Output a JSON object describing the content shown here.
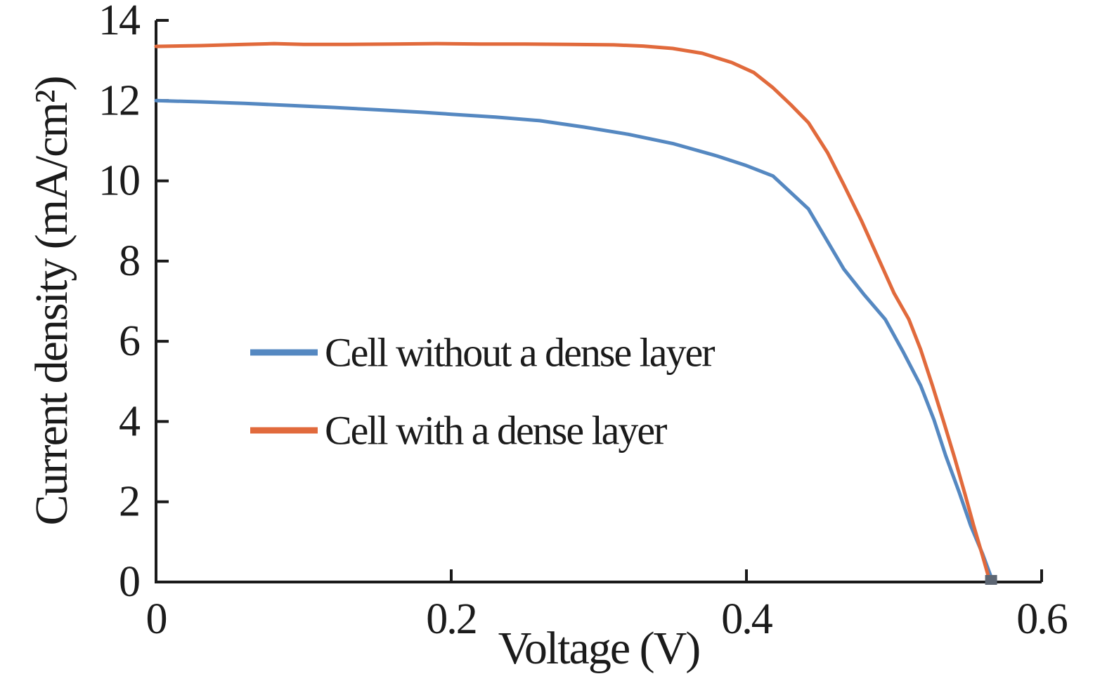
{
  "figure": {
    "background": "#ffffff",
    "axis_color": "#1a1a1a",
    "text_color": "#1b1b1b",
    "endpoint_overlap_color": "#5d6673"
  },
  "chart_data": {
    "type": "line",
    "title": "",
    "xlabel": "Voltage (V)",
    "ylabel": "Current density (mA/cm²)",
    "xlim": [
      0,
      0.6
    ],
    "ylim": [
      0,
      14
    ],
    "xticks": [
      0,
      0.2,
      0.4,
      0.6
    ],
    "xtick_labels": [
      "0",
      "0.2",
      "0.4",
      "0.6"
    ],
    "yticks": [
      0,
      2,
      4,
      6,
      8,
      10,
      12,
      14
    ],
    "ytick_labels": [
      "0",
      "2",
      "4",
      "6",
      "8",
      "10",
      "12",
      "14"
    ],
    "grid": false,
    "legend_position": "inside-middle-left",
    "series": [
      {
        "name": "Cell without a dense layer",
        "color": "#5588C1",
        "points": [
          [
            0.0,
            12.0
          ],
          [
            0.03,
            11.97
          ],
          [
            0.06,
            11.93
          ],
          [
            0.09,
            11.88
          ],
          [
            0.12,
            11.83
          ],
          [
            0.15,
            11.77
          ],
          [
            0.18,
            11.71
          ],
          [
            0.2,
            11.66
          ],
          [
            0.23,
            11.59
          ],
          [
            0.26,
            11.5
          ],
          [
            0.29,
            11.34
          ],
          [
            0.32,
            11.16
          ],
          [
            0.35,
            10.93
          ],
          [
            0.38,
            10.62
          ],
          [
            0.4,
            10.38
          ],
          [
            0.418,
            10.12
          ],
          [
            0.442,
            9.3
          ],
          [
            0.466,
            7.8
          ],
          [
            0.48,
            7.15
          ],
          [
            0.494,
            6.55
          ],
          [
            0.506,
            5.75
          ],
          [
            0.518,
            4.9
          ],
          [
            0.527,
            4.05
          ],
          [
            0.535,
            3.15
          ],
          [
            0.544,
            2.25
          ],
          [
            0.552,
            1.4
          ],
          [
            0.56,
            0.7
          ],
          [
            0.567,
            0.0
          ]
        ]
      },
      {
        "name": "Cell with a dense layer",
        "color": "#E16A3C",
        "points": [
          [
            0.0,
            13.35
          ],
          [
            0.03,
            13.37
          ],
          [
            0.06,
            13.4
          ],
          [
            0.08,
            13.42
          ],
          [
            0.1,
            13.4
          ],
          [
            0.13,
            13.4
          ],
          [
            0.16,
            13.41
          ],
          [
            0.19,
            13.42
          ],
          [
            0.22,
            13.41
          ],
          [
            0.25,
            13.41
          ],
          [
            0.28,
            13.4
          ],
          [
            0.31,
            13.39
          ],
          [
            0.33,
            13.36
          ],
          [
            0.35,
            13.3
          ],
          [
            0.37,
            13.18
          ],
          [
            0.39,
            12.95
          ],
          [
            0.405,
            12.7
          ],
          [
            0.418,
            12.32
          ],
          [
            0.43,
            11.9
          ],
          [
            0.442,
            11.45
          ],
          [
            0.455,
            10.7
          ],
          [
            0.466,
            9.9
          ],
          [
            0.478,
            9.0
          ],
          [
            0.489,
            8.1
          ],
          [
            0.5,
            7.2
          ],
          [
            0.51,
            6.55
          ],
          [
            0.518,
            5.8
          ],
          [
            0.526,
            4.9
          ],
          [
            0.534,
            3.95
          ],
          [
            0.541,
            3.1
          ],
          [
            0.548,
            2.2
          ],
          [
            0.554,
            1.4
          ],
          [
            0.56,
            0.65
          ],
          [
            0.565,
            0.0
          ]
        ]
      }
    ]
  }
}
